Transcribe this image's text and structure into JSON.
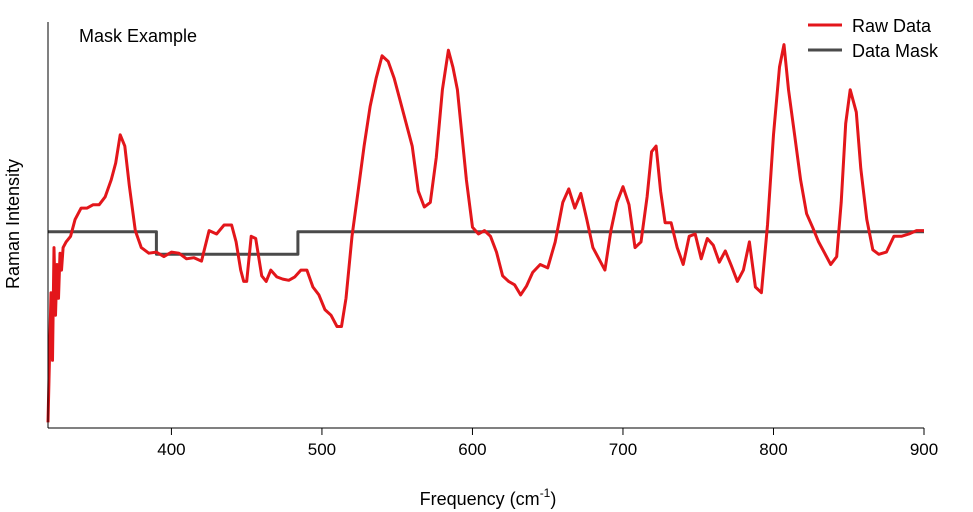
{
  "chart_data": {
    "type": "line",
    "annotation": "Mask Example",
    "xlabel": "Frequency (cm",
    "xlabel_sup": "-1",
    "xlabel_close": ")",
    "ylabel": "Raman Intensity",
    "xlim": [
      318,
      900
    ],
    "ylim": [
      -1.1,
      2.5
    ],
    "xticks": [
      400,
      500,
      600,
      700,
      800,
      900
    ],
    "xtick_labels": [
      "400",
      "500",
      "600",
      "700",
      "800",
      "900"
    ],
    "grid": false,
    "legend_position": "top-right",
    "series": [
      {
        "name": "Raw Data",
        "color": "#e3161b",
        "x": [
          318,
          320,
          321,
          322,
          323,
          324,
          325,
          326,
          327,
          328,
          330,
          333,
          336,
          340,
          344,
          348,
          352,
          356,
          360,
          363,
          366,
          369,
          372,
          376,
          380,
          385,
          390,
          395,
          400,
          405,
          410,
          415,
          420,
          425,
          430,
          435,
          440,
          443,
          446,
          448,
          450,
          453,
          456,
          460,
          463,
          466,
          470,
          474,
          478,
          482,
          486,
          490,
          494,
          498,
          502,
          506,
          510,
          513,
          516,
          520,
          524,
          528,
          532,
          536,
          540,
          544,
          548,
          552,
          556,
          560,
          564,
          568,
          572,
          576,
          580,
          584,
          587,
          590,
          593,
          596,
          600,
          604,
          608,
          612,
          616,
          620,
          624,
          628,
          632,
          636,
          640,
          645,
          650,
          655,
          660,
          664,
          668,
          672,
          676,
          680,
          684,
          688,
          692,
          696,
          700,
          704,
          708,
          712,
          716,
          719,
          722,
          725,
          728,
          732,
          736,
          740,
          744,
          748,
          752,
          756,
          760,
          764,
          768,
          772,
          776,
          780,
          784,
          788,
          792,
          796,
          800,
          804,
          807,
          810,
          814,
          818,
          822,
          826,
          830,
          834,
          838,
          842,
          845,
          848,
          851,
          855,
          858,
          862,
          866,
          870,
          875,
          880,
          885,
          890,
          895,
          900
        ],
        "y": [
          -1.05,
          0.1,
          -0.5,
          0.5,
          -0.1,
          0.35,
          0.05,
          0.45,
          0.3,
          0.5,
          0.55,
          0.6,
          0.75,
          0.85,
          0.85,
          0.88,
          0.88,
          0.95,
          1.1,
          1.25,
          1.5,
          1.4,
          1.05,
          0.65,
          0.5,
          0.45,
          0.46,
          0.42,
          0.46,
          0.45,
          0.4,
          0.41,
          0.38,
          0.65,
          0.62,
          0.7,
          0.7,
          0.55,
          0.3,
          0.2,
          0.2,
          0.6,
          0.58,
          0.25,
          0.2,
          0.3,
          0.24,
          0.22,
          0.21,
          0.24,
          0.3,
          0.3,
          0.15,
          0.08,
          -0.05,
          -0.1,
          -0.2,
          -0.2,
          0.05,
          0.6,
          1.0,
          1.4,
          1.75,
          2.0,
          2.2,
          2.15,
          2.0,
          1.8,
          1.6,
          1.4,
          1.0,
          0.86,
          0.9,
          1.3,
          1.9,
          2.25,
          2.1,
          1.9,
          1.5,
          1.1,
          0.68,
          0.62,
          0.65,
          0.6,
          0.46,
          0.25,
          0.2,
          0.17,
          0.08,
          0.16,
          0.28,
          0.35,
          0.32,
          0.55,
          0.9,
          1.02,
          0.85,
          0.98,
          0.75,
          0.5,
          0.4,
          0.3,
          0.65,
          0.9,
          1.04,
          0.88,
          0.5,
          0.55,
          0.95,
          1.35,
          1.4,
          1.0,
          0.72,
          0.72,
          0.5,
          0.35,
          0.6,
          0.62,
          0.4,
          0.58,
          0.52,
          0.37,
          0.47,
          0.34,
          0.2,
          0.3,
          0.55,
          0.15,
          0.1,
          0.7,
          1.5,
          2.1,
          2.3,
          1.9,
          1.5,
          1.1,
          0.8,
          0.68,
          0.55,
          0.45,
          0.35,
          0.42,
          0.9,
          1.6,
          1.9,
          1.7,
          1.2,
          0.75,
          0.48,
          0.44,
          0.46,
          0.6,
          0.6,
          0.62,
          0.65,
          0.65
        ]
      },
      {
        "name": "Data Mask",
        "color": "#4a4a4a",
        "x": [
          318,
          390,
          390,
          484,
          484,
          900
        ],
        "y": [
          0.64,
          0.64,
          0.44,
          0.44,
          0.64,
          0.64
        ]
      }
    ]
  }
}
